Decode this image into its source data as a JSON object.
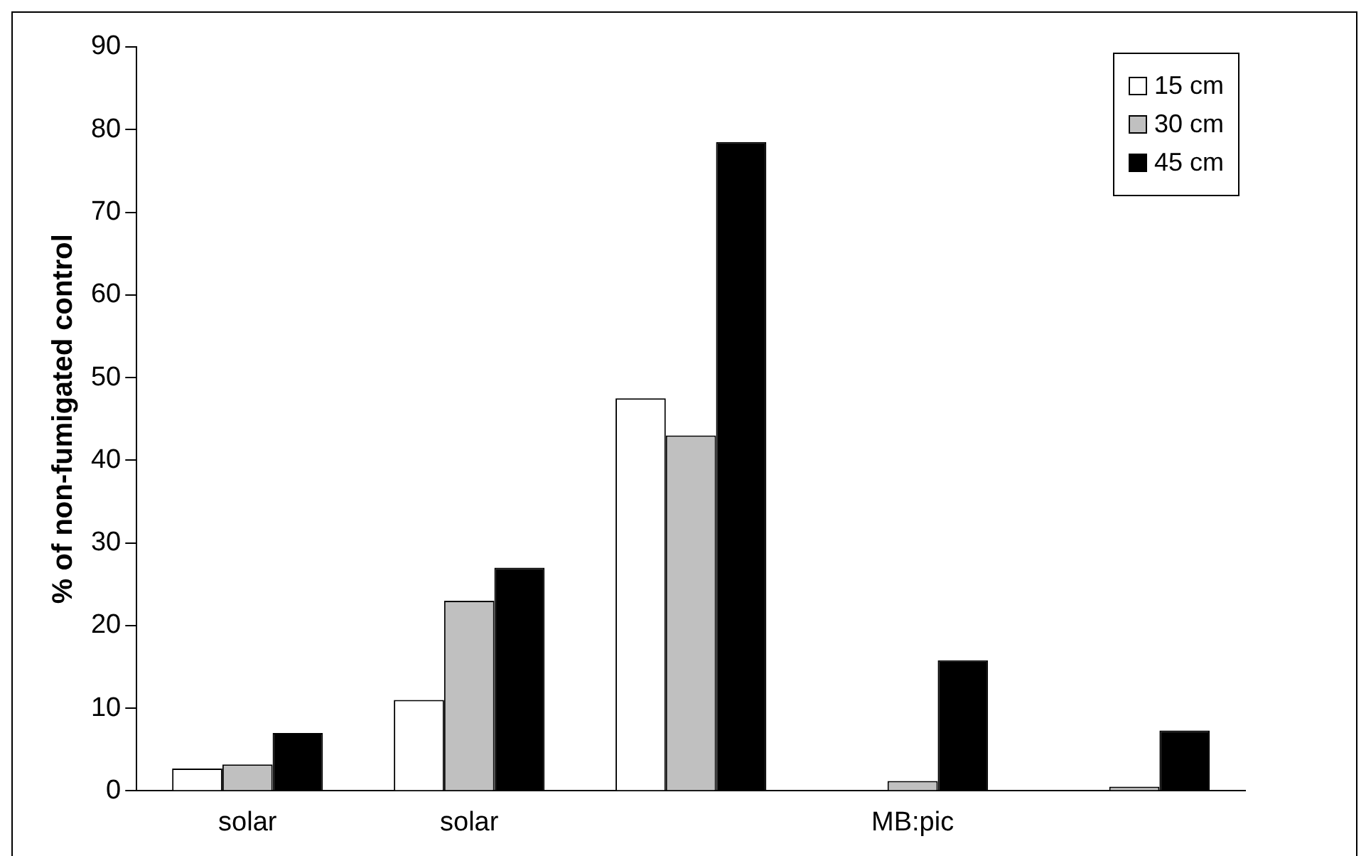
{
  "chart_data": {
    "type": "bar",
    "ylabel": "% of non-fumigated control",
    "categories": [
      "solar",
      "solar",
      null,
      "MB:pic",
      null
    ],
    "series": [
      {
        "name": "15 cm",
        "color": "#ffffff",
        "values": [
          2.7,
          11,
          47.5,
          0,
          0
        ]
      },
      {
        "name": "30 cm",
        "color": "#c0c0c0",
        "values": [
          3.2,
          23,
          43,
          1.2,
          0.5
        ]
      },
      {
        "name": "45 cm",
        "color": "#000000",
        "values": [
          7,
          27,
          78.5,
          15.8,
          7.3
        ]
      }
    ],
    "ylim": [
      0,
      90
    ],
    "yticks": [
      0,
      10,
      20,
      30,
      40,
      50,
      60,
      70,
      80,
      90
    ],
    "grid": false,
    "legend": "top right"
  }
}
